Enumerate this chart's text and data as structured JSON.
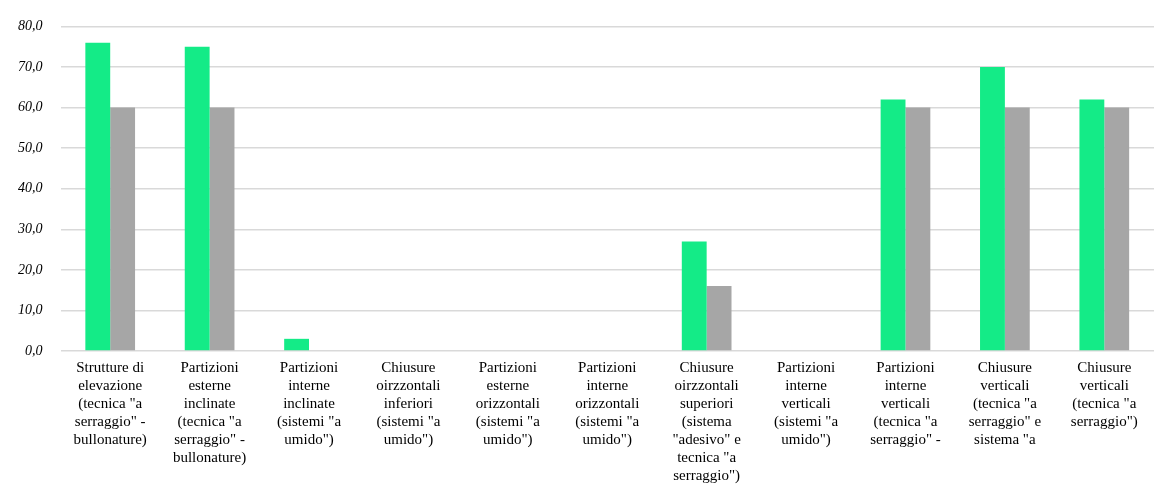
{
  "chart_data": {
    "type": "bar",
    "categories": [
      "Strutture di elevazione (tecnica \"a serraggio\" - bullonature)",
      "Partizioni esterne inclinate (tecnica \"a serraggio\" - bullonature)",
      "Partizioni interne inclinate (sistemi \"a umido\")",
      "Chiusure oirzzontali inferiori (sistemi \"a umido\")",
      "Partizioni esterne orizzontali (sistemi \"a umido\")",
      "Partizioni interne orizzontali (sistemi \"a umido\")",
      "Chiusure oirzzontali superiori (sistema \"adesivo\" e tecnica \"a serraggio\")",
      "Partizioni interne verticali (sistemi \"a umido\")",
      "Partizioni interne verticali (tecnica \"a serraggio\" -",
      "Chiusure verticali (tecnica \"a serraggio\" e sistema \"a",
      "Chiusure verticali (tecnica \"a serraggio\")"
    ],
    "series": [
      {
        "color": "#14eb87",
        "values": [
          76,
          75,
          3,
          0,
          0,
          0,
          27,
          0,
          62,
          70,
          62
        ]
      },
      {
        "color": "#a6a6a6",
        "values": [
          60,
          60,
          0,
          0,
          0,
          0,
          16,
          0,
          60,
          60,
          60
        ]
      }
    ],
    "ylim": [
      0,
      80
    ],
    "yticks": [
      {
        "value": 0,
        "label": "0,0"
      },
      {
        "value": 10,
        "label": "10,0"
      },
      {
        "value": 20,
        "label": "20,0"
      },
      {
        "value": 30,
        "label": "30,0"
      },
      {
        "value": 40,
        "label": "40,0"
      },
      {
        "value": 50,
        "label": "50,0"
      },
      {
        "value": 60,
        "label": "60,0"
      },
      {
        "value": 70,
        "label": "70,0"
      },
      {
        "value": 80,
        "label": "80,0"
      }
    ],
    "grid": "y",
    "legend": false
  }
}
